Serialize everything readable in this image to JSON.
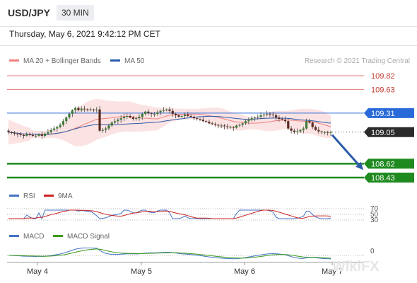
{
  "header": {
    "symbol": "USD/JPY",
    "timeframe": "30 MIN",
    "datetime": "Thursday, May 6, 2021 9:42:12 PM CET"
  },
  "legend": {
    "ma20_label": "MA 20 + Bollinger Bands",
    "ma50_label": "MA 50",
    "copyright": "Research © 2021 Trading Central",
    "ma20_color": "#f08080",
    "ma50_color": "#2a5aa8"
  },
  "rsi_legend": {
    "rsi_label": "RSI",
    "ma_label": "9MA",
    "rsi_color": "#4472c4",
    "ma_color": "#cc2222"
  },
  "macd_legend": {
    "macd_label": "MACD",
    "signal_label": "MACD Signal",
    "macd_color": "#4472c4",
    "signal_color": "#3a9a1a"
  },
  "watermark": "WikiFX",
  "chart_data": {
    "type": "candlestick",
    "ylim": [
      108.35,
      109.9
    ],
    "x_ticks": [
      "May 4",
      "May 5",
      "May 6",
      "May 7"
    ],
    "close_series": [
      109.05,
      109.04,
      109.03,
      109.02,
      109.01,
      109.0,
      109.02,
      109.01,
      109.0,
      109.0,
      109.02,
      109.0,
      109.03,
      109.05,
      109.08,
      109.1,
      109.12,
      109.15,
      109.2,
      109.25,
      109.3,
      109.35,
      109.38,
      109.35,
      109.37,
      109.36,
      109.35,
      109.36,
      109.35,
      109.36,
      109.07,
      109.08,
      109.1,
      109.14,
      109.18,
      109.2,
      109.22,
      109.24,
      109.26,
      109.27,
      109.25,
      109.23,
      109.24,
      109.26,
      109.3,
      109.33,
      109.31,
      109.3,
      109.3,
      109.32,
      109.34,
      109.35,
      109.36,
      109.34,
      109.3,
      109.28,
      109.26,
      109.27,
      109.29,
      109.27,
      109.26,
      109.24,
      109.23,
      109.22,
      109.2,
      109.19,
      109.17,
      109.16,
      109.15,
      109.14,
      109.14,
      109.13,
      109.12,
      109.12,
      109.11,
      109.14,
      109.15,
      109.17,
      109.2,
      109.22,
      109.24,
      109.25,
      109.26,
      109.28,
      109.29,
      109.3,
      109.29,
      109.28,
      109.25,
      109.23,
      109.22,
      109.2,
      109.1,
      109.07,
      109.05,
      109.06,
      109.08,
      109.1,
      109.2,
      109.18,
      109.12,
      109.08,
      109.06,
      109.05,
      109.05,
      109.04,
      109.05
    ],
    "levels": [
      {
        "label": "109.82",
        "value": 109.82,
        "style": "resistance"
      },
      {
        "label": "109.63",
        "value": 109.63,
        "style": "resistance"
      },
      {
        "label": "109.31",
        "value": 109.31,
        "style": "ma50"
      },
      {
        "label": "109.05",
        "value": 109.05,
        "style": "last"
      },
      {
        "label": "108.62",
        "value": 108.62,
        "style": "target"
      },
      {
        "label": "108.43",
        "value": 108.43,
        "style": "target"
      }
    ],
    "rsi_levels": [
      "70",
      "50",
      "30"
    ],
    "macd_level": "0",
    "forecast_arrow": {
      "from": 109.05,
      "to": 108.5,
      "color": "#2a5aa8"
    }
  }
}
